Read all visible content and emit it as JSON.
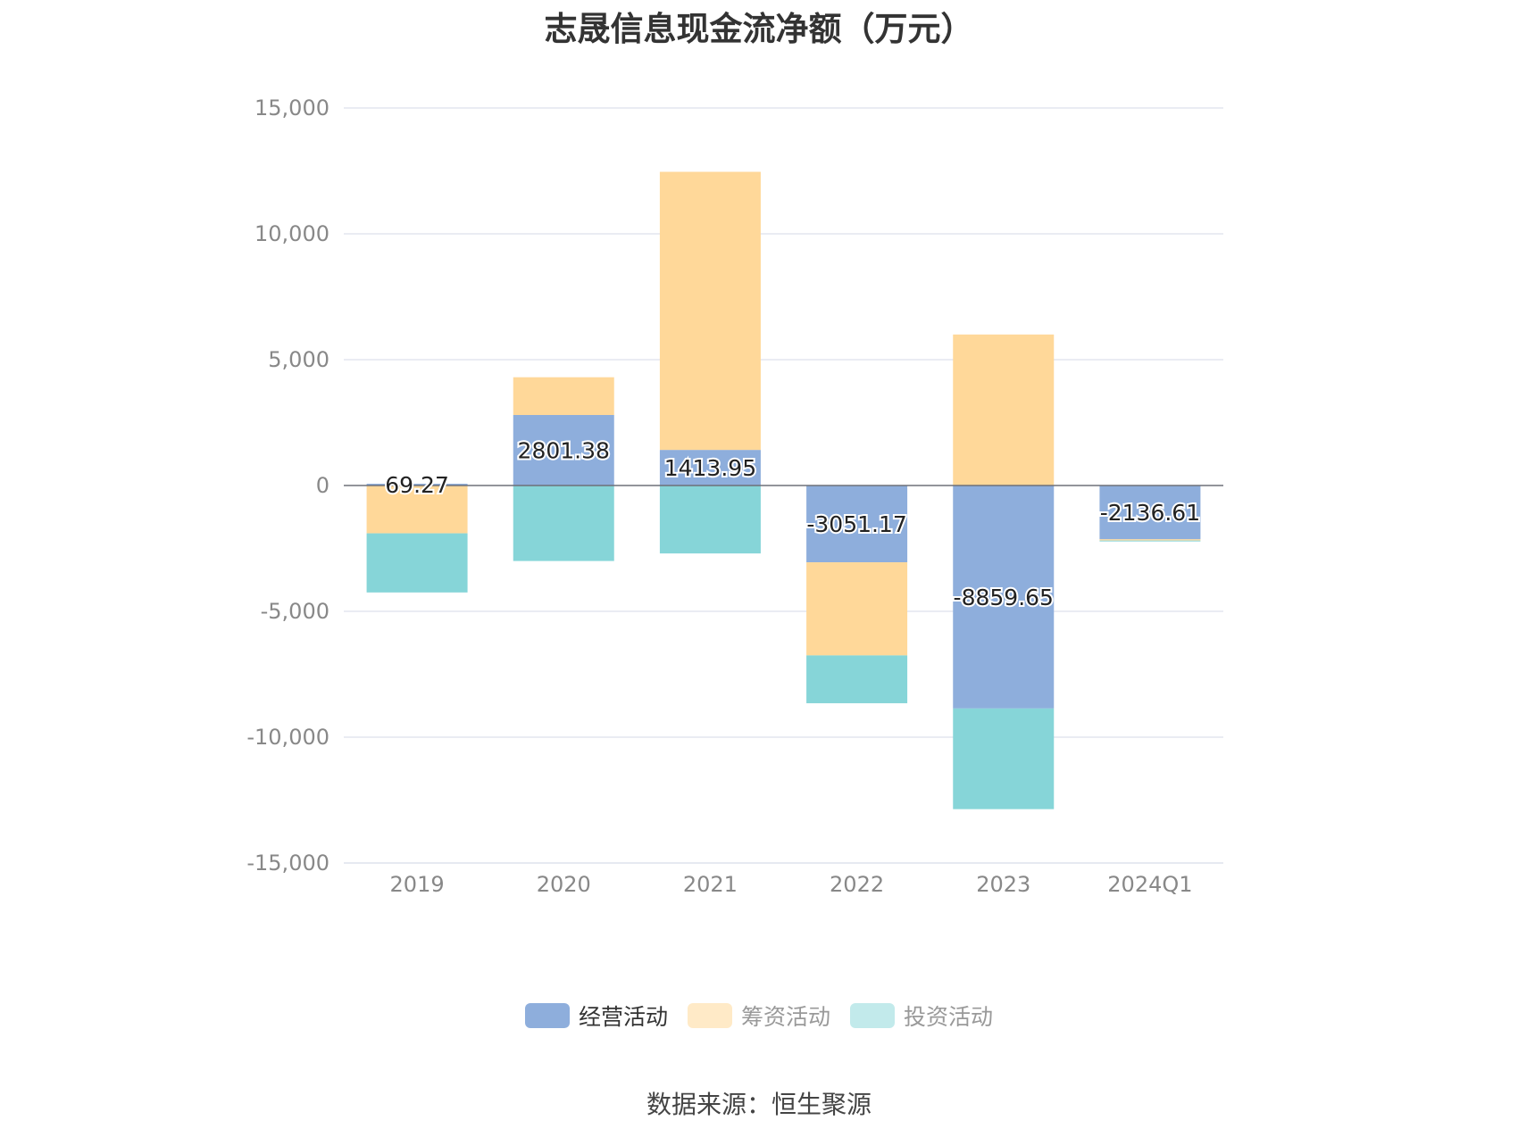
{
  "title": "志晟信息现金流净额（万元）",
  "source": "数据来源：恒生聚源",
  "chart_data": {
    "type": "bar",
    "stacked": true,
    "title": "志晟信息现金流净额（万元）",
    "categories": [
      "2019",
      "2020",
      "2021",
      "2022",
      "2023",
      "2024Q1"
    ],
    "ylim": [
      -15000,
      15000
    ],
    "yticks": [
      15000,
      10000,
      5000,
      0,
      -5000,
      -10000,
      -15000
    ],
    "ytick_labels": [
      "15,000",
      "10,000",
      "5,000",
      "0",
      "-5,000",
      "-10,000",
      "-15,000"
    ],
    "grid": true,
    "legend_position": "bottom",
    "series": [
      {
        "name": "经营活动",
        "color": "#8eaedc",
        "values": [
          69.27,
          2801.38,
          1413.95,
          -3051.17,
          -8859.65,
          -2136.61
        ],
        "labels": [
          "69.27",
          "2801.38",
          "1413.95",
          "-3051.17",
          "-8859.65",
          "-2136.61"
        ]
      },
      {
        "name": "筹资活动",
        "color": "#ffd899",
        "values": [
          -1900,
          1500,
          11050,
          -3700,
          6000,
          -50
        ]
      },
      {
        "name": "投资活动",
        "color": "#86d5d8",
        "values": [
          -2350,
          -3000,
          -2700,
          -1900,
          -4000,
          -30
        ]
      }
    ]
  }
}
